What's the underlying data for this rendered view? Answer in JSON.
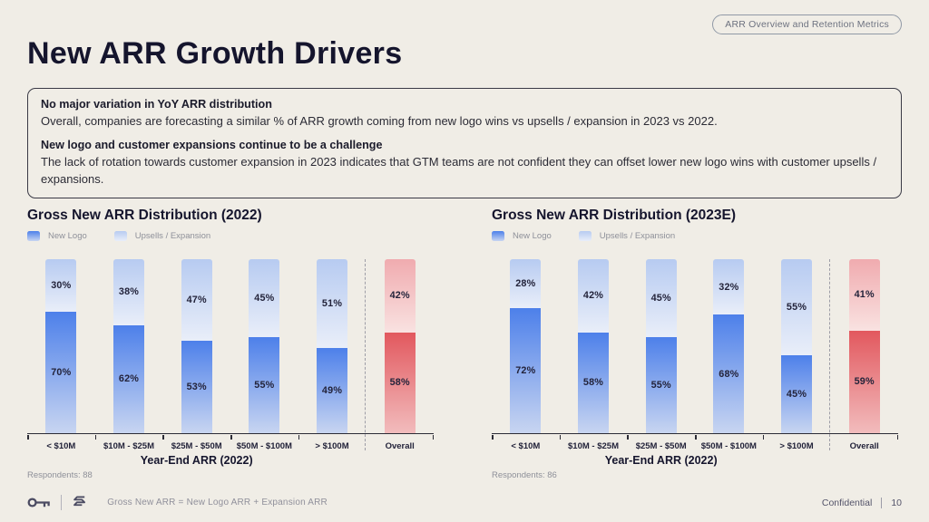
{
  "badge": {
    "label": "ARR Overview and Retention Metrics"
  },
  "title": "New ARR Growth Drivers",
  "callout": {
    "p1_title": "No major variation in YoY ARR distribution",
    "p1_body": "Overall, companies are forecasting a similar % of ARR growth coming from new logo wins vs upsells / expansion in 2023 vs 2022.",
    "p2_title": "New logo and customer expansions continue to be a challenge",
    "p2_body": "The lack of rotation towards customer expansion in 2023 indicates that GTM teams are not confident they can offset lower new logo wins with customer upsells / expansions."
  },
  "chart_data": [
    {
      "type": "bar",
      "stacked": true,
      "unit": "%",
      "title": "Gross New ARR Distribution (2022)",
      "categories": [
        "< $10M",
        "$10M - $25M",
        "$25M - $50M",
        "$50M - $100M",
        "> $100M",
        "Overall"
      ],
      "overall_category": "Overall",
      "series": [
        {
          "name": "New Logo",
          "values": [
            70,
            62,
            53,
            55,
            49,
            58
          ]
        },
        {
          "name": "Upsells / Expansion",
          "values": [
            30,
            38,
            47,
            45,
            51,
            42
          ]
        }
      ],
      "xlabel": "Year-End ARR (2022)",
      "respondents": "Respondents: 88",
      "ylim": [
        0,
        100
      ],
      "grid": false,
      "legend_position": "top-left"
    },
    {
      "type": "bar",
      "stacked": true,
      "unit": "%",
      "title": "Gross New ARR Distribution (2023E)",
      "categories": [
        "< $10M",
        "$10M - $25M",
        "$25M - $50M",
        "$50M - $100M",
        "> $100M",
        "Overall"
      ],
      "overall_category": "Overall",
      "series": [
        {
          "name": "New Logo",
          "values": [
            72,
            58,
            55,
            68,
            45,
            59
          ]
        },
        {
          "name": "Upsells / Expansion",
          "values": [
            28,
            42,
            45,
            32,
            55,
            41
          ]
        }
      ],
      "xlabel": "Year-End ARR (2022)",
      "respondents": "Respondents: 86",
      "ylim": [
        0,
        100
      ],
      "grid": false,
      "legend_position": "top-left"
    }
  ],
  "footer": {
    "icons": [
      "key-icon",
      "s-hexagon-logo-icon"
    ],
    "note": "Gross New ARR = New Logo ARR + Expansion ARR",
    "confidential_label": "Confidential",
    "page_number": "10"
  },
  "colors": {
    "background": "#f0ede6",
    "ink": "#15152d",
    "muted": "#8e9099",
    "new_logo_blue": "#4d80ea",
    "new_logo_blue_fade": "#c8d5f1",
    "upsell_blue": "#b7cbf1",
    "upsell_blue_fade": "#e9eef9",
    "overall_red": "#e2585e",
    "overall_red_fade": "#f2bcbd",
    "overall_pink": "#f0abaf",
    "overall_pink_fade": "#f9e2e1"
  }
}
